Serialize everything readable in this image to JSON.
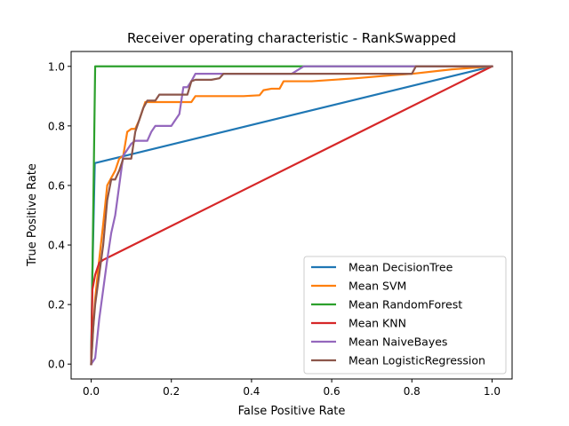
{
  "chart_data": {
    "type": "line",
    "title": "Receiver operating characteristic - RankSwapped",
    "xlabel": "False Positive Rate",
    "ylabel": "True Positive Rate",
    "xlim": [
      -0.05,
      1.05
    ],
    "ylim": [
      -0.05,
      1.05
    ],
    "xticks": [
      0.0,
      0.2,
      0.4,
      0.6,
      0.8,
      1.0
    ],
    "yticks": [
      0.0,
      0.2,
      0.4,
      0.6,
      0.8,
      1.0
    ],
    "xtick_labels": [
      "0.0",
      "0.2",
      "0.4",
      "0.6",
      "0.8",
      "1.0"
    ],
    "ytick_labels": [
      "0.0",
      "0.2",
      "0.4",
      "0.6",
      "0.8",
      "1.0"
    ],
    "grid": false,
    "legend_position": "lower-right",
    "series": [
      {
        "name": "Mean DecisionTree",
        "color": "#1f77b4",
        "x": [
          0.0,
          0.003,
          0.009,
          1.0
        ],
        "y": [
          0.0,
          0.3,
          0.675,
          1.0
        ]
      },
      {
        "name": "Mean SVM",
        "color": "#ff7f0e",
        "x": [
          0.0,
          0.005,
          0.01,
          0.02,
          0.03,
          0.04,
          0.05,
          0.06,
          0.07,
          0.08,
          0.09,
          0.1,
          0.11,
          0.12,
          0.13,
          0.135,
          0.14,
          0.16,
          0.2,
          0.25,
          0.26,
          0.3,
          0.36,
          0.38,
          0.42,
          0.43,
          0.45,
          0.47,
          0.48,
          0.55,
          0.66,
          0.75,
          0.8,
          0.9,
          1.0
        ],
        "y": [
          0.0,
          0.12,
          0.22,
          0.35,
          0.47,
          0.6,
          0.625,
          0.65,
          0.69,
          0.7,
          0.78,
          0.79,
          0.79,
          0.82,
          0.86,
          0.88,
          0.88,
          0.88,
          0.88,
          0.88,
          0.9,
          0.9,
          0.9,
          0.9,
          0.903,
          0.92,
          0.925,
          0.925,
          0.95,
          0.95,
          0.96,
          0.97,
          0.975,
          0.99,
          1.0
        ]
      },
      {
        "name": "Mean RandomForest",
        "color": "#2ca02c",
        "x": [
          0.0,
          0.01,
          0.02,
          0.53,
          1.0
        ],
        "y": [
          0.0,
          1.0,
          1.0,
          1.0,
          1.0
        ]
      },
      {
        "name": "Mean KNN",
        "color": "#d62728",
        "x": [
          0.0,
          0.003,
          0.01,
          0.02,
          0.03,
          1.0
        ],
        "y": [
          0.0,
          0.25,
          0.3,
          0.34,
          0.35,
          1.0
        ]
      },
      {
        "name": "Mean NaiveBayes",
        "color": "#9467bd",
        "x": [
          0.0,
          0.01,
          0.02,
          0.03,
          0.04,
          0.05,
          0.06,
          0.07,
          0.08,
          0.09,
          0.1,
          0.11,
          0.12,
          0.14,
          0.15,
          0.16,
          0.18,
          0.2,
          0.21,
          0.22,
          0.23,
          0.24,
          0.25,
          0.26,
          0.3,
          0.35,
          0.4,
          0.5,
          0.53,
          0.6,
          0.7,
          0.8,
          1.0
        ],
        "y": [
          0.0,
          0.02,
          0.15,
          0.25,
          0.35,
          0.44,
          0.5,
          0.6,
          0.7,
          0.72,
          0.74,
          0.75,
          0.75,
          0.75,
          0.78,
          0.8,
          0.8,
          0.8,
          0.82,
          0.84,
          0.93,
          0.93,
          0.95,
          0.975,
          0.975,
          0.975,
          0.975,
          0.975,
          1.0,
          1.0,
          1.0,
          1.0,
          1.0
        ]
      },
      {
        "name": "Mean LogisticRegression",
        "color": "#8c564b",
        "x": [
          0.0,
          0.005,
          0.01,
          0.02,
          0.03,
          0.04,
          0.05,
          0.06,
          0.07,
          0.08,
          0.1,
          0.11,
          0.12,
          0.13,
          0.14,
          0.16,
          0.17,
          0.2,
          0.24,
          0.25,
          0.26,
          0.3,
          0.32,
          0.33,
          0.4,
          0.5,
          0.6,
          0.7,
          0.8,
          0.81,
          0.9,
          1.0
        ],
        "y": [
          0.0,
          0.12,
          0.2,
          0.3,
          0.4,
          0.55,
          0.62,
          0.62,
          0.65,
          0.69,
          0.69,
          0.78,
          0.82,
          0.86,
          0.885,
          0.885,
          0.905,
          0.905,
          0.905,
          0.95,
          0.955,
          0.955,
          0.96,
          0.975,
          0.975,
          0.975,
          0.975,
          0.975,
          0.975,
          1.0,
          1.0,
          1.0
        ]
      }
    ]
  }
}
